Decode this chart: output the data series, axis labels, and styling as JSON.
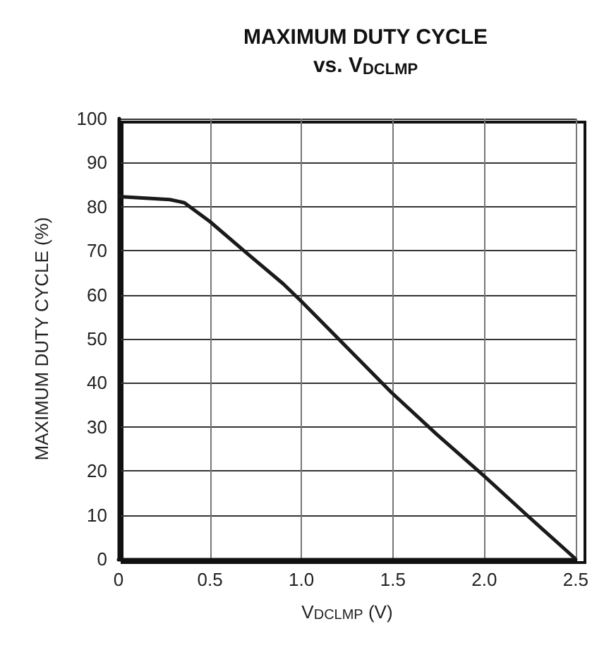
{
  "chart_data": {
    "type": "line",
    "title": "MAXIMUM DUTY CYCLE",
    "subtitle": "vs. V$_{DCLMP}$",
    "xlabel": "V$_{DCLMP}$ (V)",
    "ylabel": "MAXIMUM DUTY CYCLE (%)",
    "x": [
      0,
      0.28,
      0.36,
      0.5,
      0.7,
      0.9,
      1.0,
      1.25,
      1.49,
      1.74,
      2.0,
      2.24,
      2.5
    ],
    "series": [
      {
        "color": "#1a1a1a",
        "values": [
          82.3,
          81.6,
          80.9,
          76.6,
          69.5,
          62.5,
          58.5,
          48,
          37.9,
          28.3,
          18.8,
          9.7,
          0
        ]
      }
    ],
    "xlim": [
      0,
      2.5
    ],
    "xticks": [
      {
        "value": 0,
        "label": "0"
      },
      0.5,
      {
        "value": 1,
        "label": "1.0"
      },
      1.5,
      {
        "value": 2,
        "label": "2.0"
      },
      2.5
    ],
    "ylim": [
      0,
      100
    ],
    "yticks": [
      0,
      10,
      20,
      30,
      40,
      50,
      60,
      70,
      80,
      90,
      100
    ],
    "grid": true,
    "marker": "none",
    "line_style": "solid"
  }
}
